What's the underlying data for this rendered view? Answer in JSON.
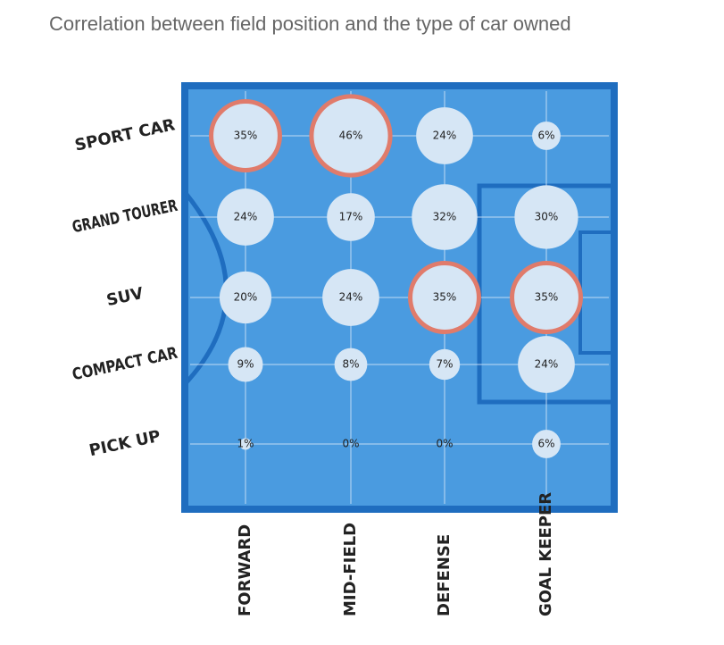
{
  "chart_data": {
    "type": "bubble",
    "title": "Correlation between field position and the type of car owned",
    "y_categories": [
      "SPORT CAR",
      "GRAND TOURER",
      "SUV",
      "COMPACT CAR",
      "PICK UP"
    ],
    "field_color": "#4a9be0",
    "border_color": "#1f6dbf",
    "bubble_color": "#d6e6f5",
    "highlight_color": "#e07b6b",
    "series": [
      {
        "name": "FORWARD",
        "values": [
          35,
          24,
          20,
          9,
          1
        ],
        "value_labels": [
          "35%",
          "24%",
          "20%",
          "9%",
          "1%"
        ]
      },
      {
        "name": "MID-FIELD",
        "values": [
          46,
          17,
          24,
          8,
          0
        ],
        "value_labels": [
          "46%",
          "17%",
          "24%",
          "8%",
          "0%"
        ]
      },
      {
        "name": "DEFENSE",
        "values": [
          24,
          32,
          35,
          7,
          0
        ],
        "value_labels": [
          "24%",
          "32%",
          "35%",
          "7%",
          "0%"
        ]
      },
      {
        "name": "GOAL KEEPER",
        "values": [
          6,
          30,
          35,
          24,
          6
        ],
        "value_labels": [
          "6%",
          "30%",
          "35%",
          "24%",
          "6%"
        ]
      }
    ]
  }
}
